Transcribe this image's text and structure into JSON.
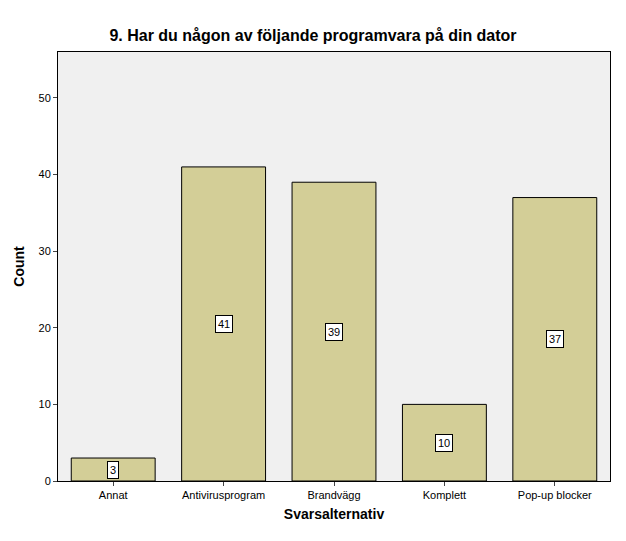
{
  "chart_data": {
    "type": "bar",
    "title": "9. Har du någon av följande programvara på din dator",
    "x_label": "Svarsalternativ",
    "y_label": "Count",
    "categories": [
      "Annat",
      "Antivirusprogram",
      "Brandvägg",
      "Komplett",
      "Pop-up blocker"
    ],
    "values": [
      3,
      41,
      39,
      10,
      37
    ],
    "color": "#d3ce97",
    "ylim": [
      0,
      56
    ],
    "yticks": [
      0,
      10,
      20,
      30,
      40,
      50
    ],
    "grid": false,
    "data_labels": true
  }
}
